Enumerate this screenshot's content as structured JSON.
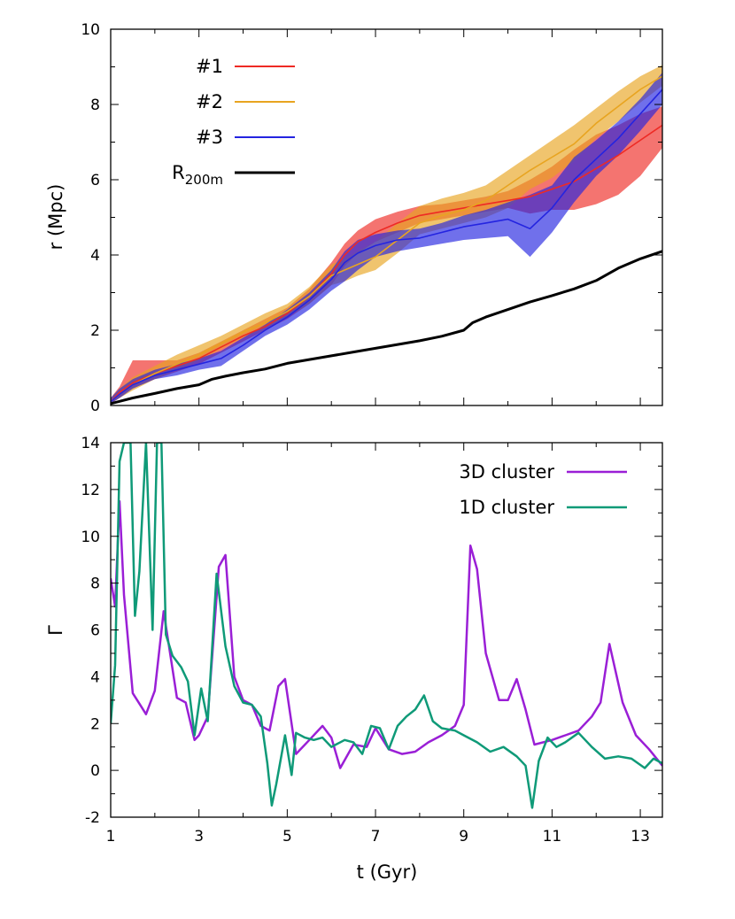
{
  "chart_data": [
    {
      "type": "line",
      "panel": "top",
      "ylabel": "r (Mpc)",
      "xlabel": "",
      "xlim": [
        1,
        13.5
      ],
      "ylim": [
        0,
        10
      ],
      "x_ticks": [
        1,
        3,
        5,
        7,
        9,
        11,
        13
      ],
      "y_ticks": [
        0,
        2,
        4,
        6,
        8,
        10
      ],
      "grid": false,
      "legend_position": "top-left",
      "series": [
        {
          "name": "#1",
          "color": "#ee2a24",
          "x": [
            1.0,
            1.2,
            1.5,
            2.0,
            2.5,
            3.0,
            3.5,
            4.0,
            4.5,
            5.0,
            5.5,
            6.0,
            6.3,
            6.6,
            7.0,
            7.5,
            8.0,
            8.5,
            9.0,
            9.5,
            10.0,
            10.5,
            11.0,
            11.5,
            12.0,
            12.5,
            13.0,
            13.5
          ],
          "y": [
            0.1,
            0.35,
            0.6,
            0.85,
            1.05,
            1.25,
            1.55,
            1.85,
            2.1,
            2.45,
            2.9,
            3.5,
            4.0,
            4.35,
            4.6,
            4.85,
            5.05,
            5.15,
            5.25,
            5.35,
            5.45,
            5.55,
            5.75,
            5.95,
            6.3,
            6.65,
            7.05,
            7.45
          ],
          "lower": [
            0.05,
            0.2,
            0.45,
            0.7,
            0.9,
            1.1,
            1.4,
            1.7,
            2.0,
            2.3,
            2.7,
            3.2,
            3.7,
            4.05,
            4.35,
            4.6,
            4.85,
            4.95,
            5.05,
            5.15,
            5.25,
            5.1,
            5.2,
            5.2,
            5.35,
            5.6,
            6.1,
            6.85
          ],
          "upper": [
            0.2,
            0.5,
            1.2,
            1.2,
            1.2,
            1.4,
            1.7,
            2.0,
            2.3,
            2.6,
            3.1,
            3.8,
            4.3,
            4.65,
            4.95,
            5.15,
            5.3,
            5.35,
            5.45,
            5.55,
            5.7,
            6.0,
            6.35,
            6.8,
            7.2,
            7.45,
            7.75,
            7.95
          ]
        },
        {
          "name": "#2",
          "color": "#e8a420",
          "x": [
            1.0,
            1.2,
            1.5,
            2.0,
            2.5,
            3.0,
            3.5,
            4.0,
            4.5,
            5.0,
            5.5,
            6.0,
            6.3,
            6.6,
            7.0,
            7.5,
            8.0,
            8.5,
            9.0,
            9.5,
            10.0,
            10.5,
            11.0,
            11.5,
            12.0,
            12.5,
            13.0,
            13.5
          ],
          "y": [
            0.1,
            0.3,
            0.55,
            0.85,
            1.1,
            1.35,
            1.65,
            1.95,
            2.2,
            2.5,
            2.9,
            3.45,
            3.6,
            3.75,
            3.95,
            4.4,
            4.85,
            5.05,
            5.2,
            5.45,
            5.85,
            6.25,
            6.6,
            6.95,
            7.5,
            7.95,
            8.4,
            8.75
          ],
          "lower": [
            0.05,
            0.2,
            0.4,
            0.7,
            0.95,
            1.2,
            1.5,
            1.8,
            2.05,
            2.35,
            2.7,
            3.2,
            3.3,
            3.45,
            3.6,
            4.05,
            4.55,
            4.7,
            4.85,
            5.0,
            5.25,
            5.75,
            6.05,
            6.5,
            7.1,
            7.55,
            8.05,
            8.5
          ],
          "upper": [
            0.2,
            0.45,
            0.75,
            1.05,
            1.35,
            1.6,
            1.85,
            2.15,
            2.45,
            2.7,
            3.15,
            3.75,
            3.9,
            4.1,
            4.35,
            4.85,
            5.3,
            5.5,
            5.65,
            5.85,
            6.25,
            6.65,
            7.05,
            7.45,
            7.9,
            8.35,
            8.75,
            9.05
          ]
        },
        {
          "name": "#3",
          "color": "#2424e0",
          "x": [
            1.0,
            1.2,
            1.5,
            2.0,
            2.5,
            3.0,
            3.5,
            4.0,
            4.5,
            5.0,
            5.5,
            6.0,
            6.3,
            6.6,
            7.0,
            7.5,
            8.0,
            8.5,
            9.0,
            9.5,
            10.0,
            10.5,
            11.0,
            11.5,
            12.0,
            12.5,
            13.0,
            13.5
          ],
          "y": [
            0.1,
            0.3,
            0.55,
            0.8,
            0.95,
            1.1,
            1.25,
            1.6,
            2.0,
            2.35,
            2.8,
            3.35,
            3.8,
            4.05,
            4.25,
            4.4,
            4.45,
            4.6,
            4.75,
            4.85,
            4.95,
            4.7,
            5.25,
            6.0,
            6.55,
            7.1,
            7.75,
            8.4
          ],
          "lower": [
            0.05,
            0.2,
            0.45,
            0.7,
            0.8,
            0.95,
            1.05,
            1.45,
            1.85,
            2.15,
            2.55,
            3.05,
            3.3,
            3.6,
            3.95,
            4.1,
            4.2,
            4.3,
            4.4,
            4.45,
            4.5,
            3.95,
            4.6,
            5.4,
            6.1,
            6.65,
            7.3,
            8.0
          ],
          "upper": [
            0.2,
            0.45,
            0.7,
            0.95,
            1.1,
            1.25,
            1.45,
            1.8,
            2.15,
            2.55,
            3.0,
            3.6,
            4.1,
            4.4,
            4.55,
            4.65,
            4.7,
            4.85,
            5.05,
            5.2,
            5.4,
            5.6,
            5.85,
            6.6,
            7.05,
            7.55,
            8.15,
            8.85
          ]
        },
        {
          "name": "R200m",
          "color": "#000000",
          "x": [
            1.0,
            1.5,
            2.0,
            2.5,
            3.0,
            3.3,
            3.6,
            4.0,
            4.5,
            5.0,
            5.5,
            6.0,
            6.5,
            7.0,
            7.5,
            8.0,
            8.5,
            9.0,
            9.2,
            9.5,
            10.0,
            10.5,
            11.0,
            11.5,
            12.0,
            12.5,
            13.0,
            13.5
          ],
          "y": [
            0.05,
            0.2,
            0.32,
            0.45,
            0.55,
            0.7,
            0.78,
            0.87,
            0.97,
            1.12,
            1.22,
            1.32,
            1.42,
            1.52,
            1.62,
            1.72,
            1.84,
            2.0,
            2.2,
            2.35,
            2.55,
            2.75,
            2.92,
            3.1,
            3.32,
            3.65,
            3.9,
            4.1
          ]
        }
      ],
      "legend": {
        "entries": [
          "#1",
          "#2",
          "#3"
        ],
        "r200_prefix": "R",
        "r200_sub": "200m"
      }
    },
    {
      "type": "line",
      "panel": "bottom",
      "xlabel": "t (Gyr)",
      "ylabel": "Γ",
      "xlim": [
        1,
        13.5
      ],
      "ylim": [
        -2,
        14
      ],
      "x_ticks": [
        1,
        3,
        5,
        7,
        9,
        11,
        13
      ],
      "y_ticks": [
        -2,
        0,
        2,
        4,
        6,
        8,
        10,
        12,
        14
      ],
      "grid": false,
      "legend_position": "top-right",
      "series": [
        {
          "name": "3D cluster",
          "color": "#9a1fd6",
          "x": [
            1.0,
            1.1,
            1.2,
            1.3,
            1.5,
            1.7,
            1.8,
            2.0,
            2.2,
            2.5,
            2.7,
            2.9,
            3.0,
            3.2,
            3.45,
            3.6,
            3.8,
            4.0,
            4.2,
            4.4,
            4.6,
            4.8,
            4.95,
            5.2,
            5.5,
            5.8,
            6.0,
            6.2,
            6.5,
            6.8,
            7.0,
            7.3,
            7.6,
            7.9,
            8.2,
            8.5,
            8.8,
            9.0,
            9.15,
            9.3,
            9.5,
            9.8,
            10.0,
            10.2,
            10.4,
            10.6,
            11.0,
            11.3,
            11.6,
            11.9,
            12.1,
            12.3,
            12.6,
            12.9,
            13.2,
            13.5
          ],
          "y": [
            8.2,
            7.0,
            11.5,
            7.5,
            3.3,
            2.7,
            2.4,
            3.4,
            6.8,
            3.1,
            2.9,
            1.3,
            1.5,
            2.3,
            8.7,
            9.2,
            4.0,
            3.0,
            2.8,
            1.9,
            1.7,
            3.6,
            3.9,
            0.7,
            1.3,
            1.9,
            1.4,
            0.1,
            1.1,
            1.0,
            1.8,
            0.9,
            0.7,
            0.8,
            1.2,
            1.5,
            1.9,
            2.8,
            9.6,
            8.6,
            5.0,
            3.0,
            3.0,
            3.9,
            2.6,
            1.1,
            1.3,
            1.5,
            1.7,
            2.3,
            2.9,
            5.4,
            2.9,
            1.5,
            0.9,
            0.2
          ]
        },
        {
          "name": "1D cluster",
          "color": "#0f9a78",
          "x": [
            1.0,
            1.1,
            1.2,
            1.3,
            1.45,
            1.55,
            1.65,
            1.8,
            1.95,
            2.05,
            2.15,
            2.25,
            2.4,
            2.6,
            2.75,
            2.9,
            3.05,
            3.2,
            3.4,
            3.6,
            3.8,
            4.0,
            4.2,
            4.4,
            4.55,
            4.65,
            4.75,
            4.95,
            5.1,
            5.2,
            5.4,
            5.6,
            5.8,
            6.0,
            6.3,
            6.5,
            6.7,
            6.9,
            7.1,
            7.3,
            7.5,
            7.7,
            7.9,
            8.1,
            8.3,
            8.5,
            8.8,
            9.0,
            9.3,
            9.6,
            9.9,
            10.2,
            10.4,
            10.55,
            10.7,
            10.9,
            11.1,
            11.3,
            11.6,
            11.9,
            12.2,
            12.5,
            12.8,
            13.1,
            13.3,
            13.5
          ],
          "y": [
            2.0,
            4.5,
            13.2,
            14.0,
            14.0,
            6.6,
            8.5,
            14.0,
            6.0,
            14.0,
            14.0,
            5.8,
            4.9,
            4.4,
            3.8,
            1.5,
            3.5,
            2.1,
            8.4,
            5.3,
            3.6,
            2.9,
            2.8,
            2.3,
            0.3,
            -1.5,
            -0.6,
            1.5,
            -0.2,
            1.6,
            1.4,
            1.3,
            1.4,
            1.0,
            1.3,
            1.2,
            0.7,
            1.9,
            1.8,
            0.9,
            1.9,
            2.3,
            2.6,
            3.2,
            2.1,
            1.8,
            1.7,
            1.5,
            1.2,
            0.8,
            1.0,
            0.6,
            0.2,
            -1.6,
            0.4,
            1.4,
            1.0,
            1.2,
            1.6,
            1.0,
            0.5,
            0.6,
            0.5,
            0.1,
            0.5,
            0.3
          ]
        }
      ]
    }
  ]
}
